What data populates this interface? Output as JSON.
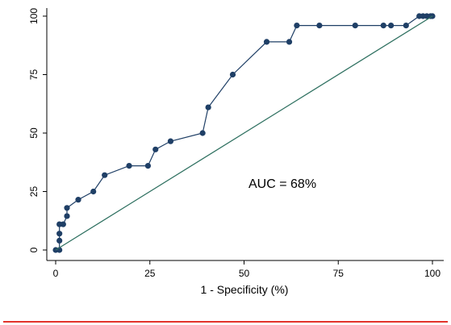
{
  "chart_data": {
    "type": "line",
    "title": "",
    "xlabel": "1 - Specificity (%)",
    "ylabel": "",
    "xlim": [
      0,
      100
    ],
    "ylim": [
      0,
      100
    ],
    "xticks": [
      "0",
      "25",
      "50",
      "75",
      "100"
    ],
    "yticks": [
      "0",
      "25",
      "50",
      "75",
      "100"
    ],
    "grid": false,
    "annotation": "AUC = 68%",
    "series": [
      {
        "color": "#1f3f66",
        "markers": true,
        "x": [
          0,
          1,
          1,
          1,
          1,
          2,
          3,
          3,
          6,
          10,
          13,
          19.5,
          24.5,
          26.5,
          30.5,
          39,
          40.5,
          47,
          56,
          62,
          64,
          70,
          79.5,
          87,
          89,
          93,
          96.5,
          97.5,
          98.5,
          99.5,
          100
        ],
        "y": [
          0,
          0,
          4,
          7,
          11,
          11,
          14.5,
          18,
          21.5,
          25,
          32,
          36,
          36,
          43,
          46.5,
          50,
          61,
          75,
          89,
          89,
          96,
          96,
          96,
          96,
          96,
          96,
          100,
          100,
          100,
          100,
          100
        ]
      },
      {
        "color": "#2e7060",
        "markers": false,
        "x": [
          0,
          100
        ],
        "y": [
          0,
          100
        ]
      }
    ]
  }
}
